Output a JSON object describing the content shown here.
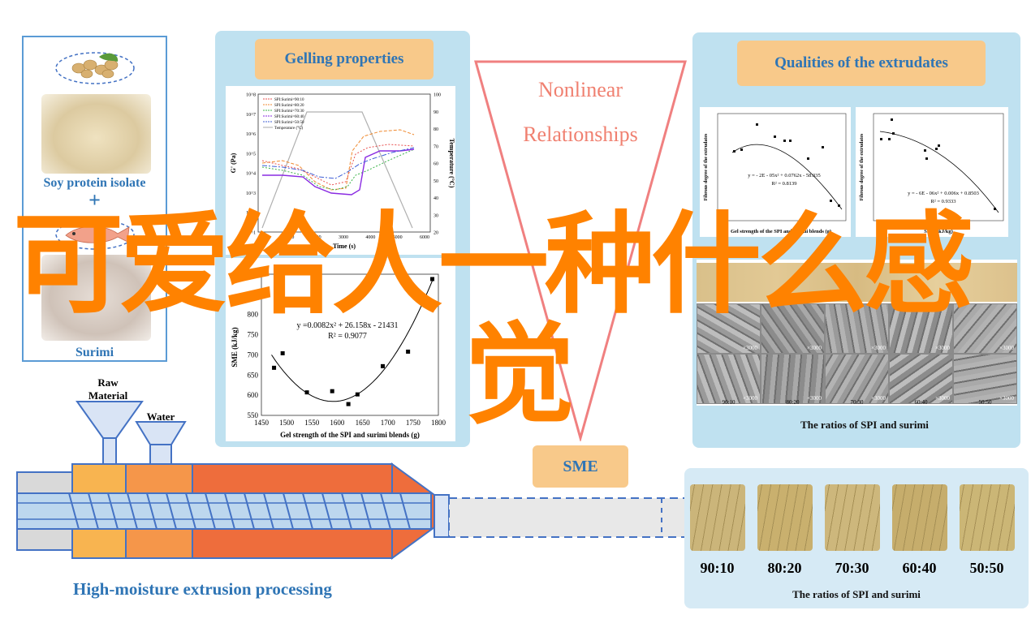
{
  "raw_materials": {
    "soy_label": "Soy protein isolate",
    "plus": "+",
    "surimi_label": "Surimi"
  },
  "gelling": {
    "title": "Gelling properties",
    "chart_data": {
      "type": "line",
      "xlabel": "Time (s)",
      "ylabel": "G' (Pa)",
      "y2label": "Temperature (°C)",
      "xticks": [
        "0",
        "1000",
        "2000",
        "3000",
        "4000",
        "5000",
        "6000"
      ],
      "yticks": [
        "10^1",
        "10^2",
        "10^3",
        "10^4",
        "10^5",
        "10^6",
        "10^7",
        "10^8"
      ],
      "y2ticks": [
        "20",
        "30",
        "40",
        "50",
        "60",
        "70",
        "80",
        "90",
        "100"
      ],
      "legend": [
        "SPI:Surimi=90:10",
        "SPI:Surimi=80:20",
        "SPI:Surimi=70:30",
        "SPI:Surimi=60:40",
        "SPI:Surimi=50:50",
        "Temperature (°C)"
      ],
      "series_colors": [
        "#e8504f",
        "#f08a30",
        "#3cb44b",
        "#8a2be2",
        "#3f5fd6",
        "#aaaaaa"
      ]
    }
  },
  "sme_chart": {
    "chart_data": {
      "type": "scatter",
      "xlabel": "Gel strength of the SPI and surimi blends (g)",
      "ylabel": "SME (kJ/kg)",
      "xlim": [
        1450,
        1800
      ],
      "ylim": [
        550,
        900
      ],
      "xticks": [
        "1450",
        "1500",
        "1550",
        "1600",
        "1650",
        "1700",
        "1750",
        "1800"
      ],
      "yticks": [
        "550",
        "600",
        "650",
        "700",
        "750",
        "800",
        "850",
        "900"
      ],
      "equation": "y =0.0082x² + 26.158x - 21431",
      "r2": "R² = 0.9077",
      "points": [
        [
          1475,
          668
        ],
        [
          1492,
          704
        ],
        [
          1540,
          607
        ],
        [
          1590,
          610
        ],
        [
          1622,
          578
        ],
        [
          1640,
          602
        ],
        [
          1690,
          672
        ],
        [
          1740,
          708
        ],
        [
          1788,
          888
        ]
      ]
    }
  },
  "nonlinear": {
    "line1": "Nonlinear",
    "line2": "Relationships"
  },
  "sme_tag": "SME",
  "qualities": {
    "title": "Qualities of the extrudates",
    "caption": "The ratios of SPI and surimi",
    "chart1": {
      "xlabel": "Gel strength of the SPI and surimi blends (g)",
      "ylabel": "Fibrous degree of the extrudates",
      "equation": "y = - 2E - 05x² + 0.0762x - 58.035",
      "r2": "R² = 0.8139"
    },
    "chart2": {
      "xlabel": "SME (kJ/kg)",
      "ylabel": "Fibrous degree of the extrudates",
      "equation": "y = - 6E - 06x² + 0.006x + 0.8503",
      "r2": "R² = 0.9333"
    },
    "sem_label": "×3000",
    "ratios": [
      "90:10",
      "80:20",
      "70:30",
      "60:40",
      "50:50"
    ]
  },
  "extruder": {
    "raw_label_1": "Raw",
    "raw_label_2": "Material",
    "water_label": "Water",
    "caption": "High-moisture extrusion processing"
  },
  "photos": {
    "ratios": [
      "90:10",
      "80:20",
      "70:30",
      "60:40",
      "50:50"
    ],
    "caption": "The ratios of SPI and surimi"
  },
  "overlay": {
    "line1": "可爱给人一种什么感",
    "line2": "觉"
  },
  "colors": {
    "panel_blue": "#bfe1f0",
    "tag_orange": "#f8c98a",
    "tag_text": "#2f75b5",
    "overlay_orange": "#ff8200",
    "triangle": "#f08080"
  }
}
